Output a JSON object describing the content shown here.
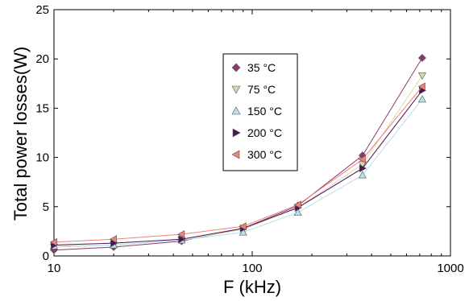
{
  "chart_data": {
    "type": "line",
    "title": "",
    "xlabel": "F (kHz)",
    "ylabel": "Total power losses(W)",
    "x_scale": "log",
    "xlim": [
      10,
      1000
    ],
    "ylim": [
      0,
      25
    ],
    "x_ticks": [
      10,
      100,
      1000
    ],
    "x_tick_labels": [
      "10",
      "100",
      "1000"
    ],
    "y_ticks": [
      0,
      5,
      10,
      15,
      20,
      25
    ],
    "y_tick_labels": [
      "0",
      "5",
      "10",
      "15",
      "20",
      "25"
    ],
    "grid": false,
    "legend_position": "center",
    "x": [
      10,
      20,
      44,
      90,
      170,
      360,
      720
    ],
    "series": [
      {
        "name": "35 °C",
        "marker": "diamond",
        "color": "#8b3a6b",
        "values": [
          0.6,
          0.9,
          1.5,
          2.8,
          5.1,
          10.2,
          20.1
        ]
      },
      {
        "name": "75 °C",
        "marker": "triangle-down",
        "color": "#d8d8b0",
        "values": [
          0.9,
          1.1,
          1.6,
          2.7,
          4.9,
          9.3,
          18.3
        ]
      },
      {
        "name": "150 °C",
        "marker": "triangle-up",
        "color": "#b8e0ec",
        "values": [
          1.0,
          1.1,
          1.6,
          2.4,
          4.4,
          8.2,
          15.9
        ]
      },
      {
        "name": "200 °C",
        "marker": "triangle-right",
        "color": "#4a1858",
        "values": [
          1.1,
          1.3,
          1.7,
          2.8,
          4.9,
          8.9,
          16.8
        ]
      },
      {
        "name": "300 °C",
        "marker": "triangle-left",
        "color": "#f08078",
        "values": [
          1.4,
          1.7,
          2.2,
          3.0,
          5.2,
          9.8,
          17.2
        ]
      }
    ]
  }
}
